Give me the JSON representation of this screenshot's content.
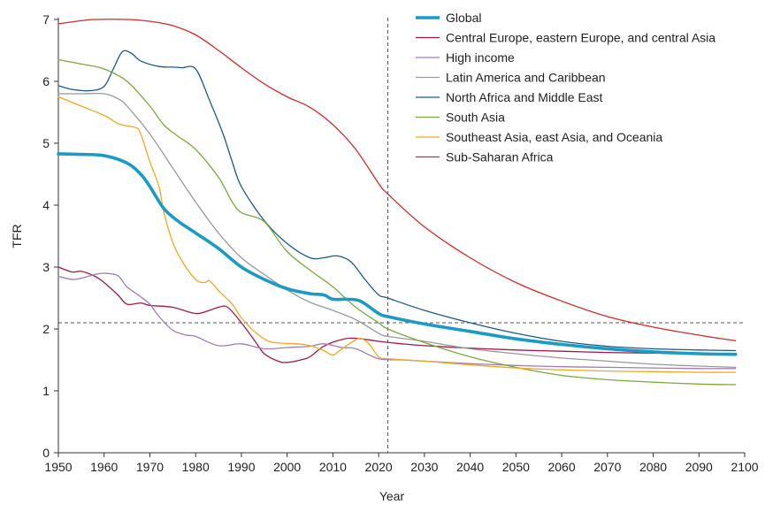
{
  "chart_data": {
    "type": "line",
    "xlabel": "Year",
    "ylabel": "TFR",
    "xlim": [
      1950,
      2100
    ],
    "ylim": [
      0,
      7
    ],
    "x_ticks": [
      1950,
      1960,
      1970,
      1980,
      1990,
      2000,
      2010,
      2020,
      2030,
      2040,
      2050,
      2060,
      2070,
      2080,
      2090,
      2100
    ],
    "y_ticks": [
      0,
      1,
      2,
      3,
      4,
      5,
      6,
      7
    ],
    "reference_lines": {
      "vertical_x": 2022,
      "horizontal_y": 2.1
    },
    "legend_position": "top-right",
    "series": [
      {
        "name": "Global",
        "color": "#1a9bc4",
        "emphasis": true,
        "points": [
          [
            1950,
            4.83
          ],
          [
            1955,
            4.82
          ],
          [
            1960,
            4.8
          ],
          [
            1965,
            4.68
          ],
          [
            1968,
            4.5
          ],
          [
            1970,
            4.3
          ],
          [
            1973,
            3.95
          ],
          [
            1976,
            3.75
          ],
          [
            1980,
            3.55
          ],
          [
            1985,
            3.3
          ],
          [
            1990,
            3.0
          ],
          [
            1995,
            2.8
          ],
          [
            2000,
            2.65
          ],
          [
            2005,
            2.57
          ],
          [
            2008,
            2.55
          ],
          [
            2010,
            2.48
          ],
          [
            2013,
            2.48
          ],
          [
            2016,
            2.45
          ],
          [
            2020,
            2.25
          ],
          [
            2022,
            2.2
          ],
          [
            2030,
            2.08
          ],
          [
            2040,
            1.96
          ],
          [
            2050,
            1.84
          ],
          [
            2060,
            1.75
          ],
          [
            2070,
            1.68
          ],
          [
            2080,
            1.63
          ],
          [
            2090,
            1.6
          ],
          [
            2098,
            1.59
          ]
        ]
      },
      {
        "name": "Central Europe, eastern Europe, and central Asia",
        "color": "#a3174a",
        "points": [
          [
            1950,
            3.0
          ],
          [
            1953,
            2.92
          ],
          [
            1955,
            2.93
          ],
          [
            1958,
            2.85
          ],
          [
            1960,
            2.75
          ],
          [
            1963,
            2.55
          ],
          [
            1965,
            2.4
          ],
          [
            1968,
            2.42
          ],
          [
            1970,
            2.38
          ],
          [
            1975,
            2.35
          ],
          [
            1980,
            2.25
          ],
          [
            1983,
            2.3
          ],
          [
            1985,
            2.35
          ],
          [
            1987,
            2.35
          ],
          [
            1990,
            2.1
          ],
          [
            1993,
            1.8
          ],
          [
            1995,
            1.6
          ],
          [
            1998,
            1.48
          ],
          [
            2000,
            1.46
          ],
          [
            2003,
            1.5
          ],
          [
            2005,
            1.55
          ],
          [
            2008,
            1.72
          ],
          [
            2012,
            1.83
          ],
          [
            2015,
            1.85
          ],
          [
            2020,
            1.8
          ],
          [
            2025,
            1.76
          ],
          [
            2030,
            1.73
          ],
          [
            2040,
            1.69
          ],
          [
            2050,
            1.66
          ],
          [
            2060,
            1.64
          ],
          [
            2070,
            1.62
          ],
          [
            2080,
            1.61
          ],
          [
            2090,
            1.6
          ],
          [
            2098,
            1.6
          ]
        ]
      },
      {
        "name": "High income",
        "color": "#a07cb8",
        "points": [
          [
            1950,
            2.85
          ],
          [
            1953,
            2.8
          ],
          [
            1955,
            2.82
          ],
          [
            1958,
            2.88
          ],
          [
            1960,
            2.9
          ],
          [
            1963,
            2.86
          ],
          [
            1965,
            2.68
          ],
          [
            1968,
            2.52
          ],
          [
            1970,
            2.4
          ],
          [
            1972,
            2.2
          ],
          [
            1975,
            1.98
          ],
          [
            1978,
            1.9
          ],
          [
            1980,
            1.88
          ],
          [
            1985,
            1.73
          ],
          [
            1990,
            1.76
          ],
          [
            1995,
            1.68
          ],
          [
            2000,
            1.7
          ],
          [
            2005,
            1.72
          ],
          [
            2008,
            1.76
          ],
          [
            2012,
            1.7
          ],
          [
            2015,
            1.68
          ],
          [
            2020,
            1.52
          ],
          [
            2025,
            1.5
          ],
          [
            2030,
            1.48
          ],
          [
            2040,
            1.44
          ],
          [
            2050,
            1.41
          ],
          [
            2060,
            1.39
          ],
          [
            2070,
            1.38
          ],
          [
            2080,
            1.37
          ],
          [
            2090,
            1.36
          ],
          [
            2098,
            1.36
          ]
        ]
      },
      {
        "name": "Latin America and Caribbean",
        "color": "#999999",
        "points": [
          [
            1950,
            5.8
          ],
          [
            1955,
            5.8
          ],
          [
            1960,
            5.8
          ],
          [
            1963,
            5.72
          ],
          [
            1965,
            5.6
          ],
          [
            1970,
            5.15
          ],
          [
            1975,
            4.6
          ],
          [
            1980,
            4.05
          ],
          [
            1985,
            3.55
          ],
          [
            1990,
            3.15
          ],
          [
            1995,
            2.88
          ],
          [
            2000,
            2.63
          ],
          [
            2005,
            2.43
          ],
          [
            2010,
            2.3
          ],
          [
            2015,
            2.15
          ],
          [
            2020,
            1.93
          ],
          [
            2022,
            1.88
          ],
          [
            2030,
            1.8
          ],
          [
            2040,
            1.68
          ],
          [
            2050,
            1.6
          ],
          [
            2060,
            1.53
          ],
          [
            2070,
            1.48
          ],
          [
            2080,
            1.43
          ],
          [
            2090,
            1.4
          ],
          [
            2098,
            1.38
          ]
        ]
      },
      {
        "name": "North Africa and Middle East",
        "color": "#1a5a8c",
        "points": [
          [
            1950,
            5.93
          ],
          [
            1953,
            5.87
          ],
          [
            1957,
            5.85
          ],
          [
            1960,
            5.92
          ],
          [
            1962,
            6.2
          ],
          [
            1964,
            6.48
          ],
          [
            1966,
            6.45
          ],
          [
            1968,
            6.33
          ],
          [
            1972,
            6.24
          ],
          [
            1975,
            6.23
          ],
          [
            1977,
            6.22
          ],
          [
            1980,
            6.2
          ],
          [
            1983,
            5.7
          ],
          [
            1986,
            5.15
          ],
          [
            1988,
            4.7
          ],
          [
            1990,
            4.3
          ],
          [
            1995,
            3.75
          ],
          [
            2000,
            3.38
          ],
          [
            2005,
            3.15
          ],
          [
            2008,
            3.15
          ],
          [
            2011,
            3.18
          ],
          [
            2014,
            3.08
          ],
          [
            2017,
            2.8
          ],
          [
            2020,
            2.55
          ],
          [
            2022,
            2.5
          ],
          [
            2030,
            2.3
          ],
          [
            2040,
            2.1
          ],
          [
            2050,
            1.93
          ],
          [
            2060,
            1.8
          ],
          [
            2070,
            1.72
          ],
          [
            2080,
            1.68
          ],
          [
            2090,
            1.66
          ],
          [
            2098,
            1.65
          ]
        ]
      },
      {
        "name": "South Asia",
        "color": "#7aaa3c",
        "points": [
          [
            1950,
            6.35
          ],
          [
            1955,
            6.28
          ],
          [
            1960,
            6.2
          ],
          [
            1965,
            6.0
          ],
          [
            1970,
            5.6
          ],
          [
            1973,
            5.3
          ],
          [
            1976,
            5.12
          ],
          [
            1980,
            4.9
          ],
          [
            1985,
            4.45
          ],
          [
            1988,
            4.05
          ],
          [
            1990,
            3.88
          ],
          [
            1994,
            3.78
          ],
          [
            1996,
            3.65
          ],
          [
            2000,
            3.25
          ],
          [
            2005,
            2.95
          ],
          [
            2010,
            2.68
          ],
          [
            2015,
            2.35
          ],
          [
            2020,
            2.1
          ],
          [
            2022,
            2.0
          ],
          [
            2030,
            1.78
          ],
          [
            2040,
            1.55
          ],
          [
            2050,
            1.38
          ],
          [
            2060,
            1.25
          ],
          [
            2070,
            1.18
          ],
          [
            2080,
            1.14
          ],
          [
            2090,
            1.11
          ],
          [
            2098,
            1.1
          ]
        ]
      },
      {
        "name": "Southeast Asia, east Asia, and Oceania",
        "color": "#f0a81e",
        "points": [
          [
            1950,
            5.75
          ],
          [
            1955,
            5.6
          ],
          [
            1960,
            5.45
          ],
          [
            1963,
            5.32
          ],
          [
            1965,
            5.28
          ],
          [
            1967,
            5.25
          ],
          [
            1968,
            5.15
          ],
          [
            1970,
            4.7
          ],
          [
            1972,
            4.3
          ],
          [
            1973,
            3.9
          ],
          [
            1975,
            3.4
          ],
          [
            1977,
            3.1
          ],
          [
            1980,
            2.8
          ],
          [
            1982,
            2.75
          ],
          [
            1983,
            2.78
          ],
          [
            1985,
            2.62
          ],
          [
            1988,
            2.4
          ],
          [
            1990,
            2.18
          ],
          [
            1993,
            1.95
          ],
          [
            1996,
            1.8
          ],
          [
            1999,
            1.77
          ],
          [
            2002,
            1.76
          ],
          [
            2005,
            1.73
          ],
          [
            2008,
            1.65
          ],
          [
            2010,
            1.58
          ],
          [
            2012,
            1.68
          ],
          [
            2014,
            1.78
          ],
          [
            2016,
            1.85
          ],
          [
            2018,
            1.75
          ],
          [
            2020,
            1.55
          ],
          [
            2022,
            1.52
          ],
          [
            2030,
            1.48
          ],
          [
            2040,
            1.42
          ],
          [
            2050,
            1.37
          ],
          [
            2060,
            1.34
          ],
          [
            2070,
            1.32
          ],
          [
            2080,
            1.31
          ],
          [
            2090,
            1.3
          ],
          [
            2098,
            1.3
          ]
        ]
      },
      {
        "name": "Sub-Saharan Africa",
        "color": "#d42a25",
        "points": [
          [
            1950,
            6.93
          ],
          [
            1955,
            6.98
          ],
          [
            1958,
            7.0
          ],
          [
            1965,
            7.0
          ],
          [
            1970,
            6.97
          ],
          [
            1975,
            6.9
          ],
          [
            1980,
            6.75
          ],
          [
            1985,
            6.5
          ],
          [
            1990,
            6.22
          ],
          [
            1995,
            5.96
          ],
          [
            2000,
            5.75
          ],
          [
            2005,
            5.58
          ],
          [
            2010,
            5.3
          ],
          [
            2015,
            4.9
          ],
          [
            2020,
            4.35
          ],
          [
            2022,
            4.18
          ],
          [
            2030,
            3.65
          ],
          [
            2040,
            3.15
          ],
          [
            2050,
            2.75
          ],
          [
            2060,
            2.45
          ],
          [
            2070,
            2.2
          ],
          [
            2080,
            2.03
          ],
          [
            2090,
            1.9
          ],
          [
            2098,
            1.81
          ]
        ]
      }
    ]
  }
}
